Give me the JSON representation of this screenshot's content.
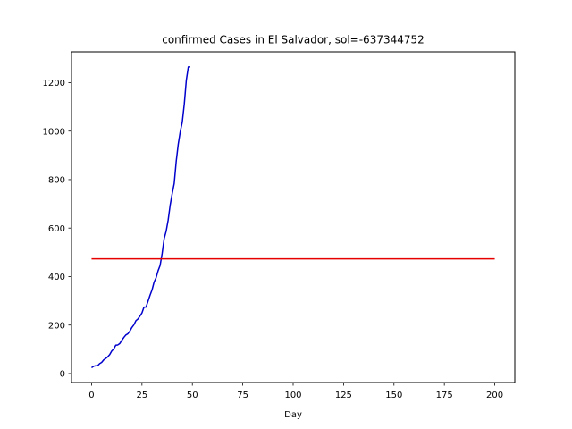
{
  "chart_data": {
    "type": "line",
    "title": "confirmed Cases in El Salvador, sol=-637344752",
    "xlabel": "Day",
    "ylabel": "",
    "xlim": [
      -9.95,
      209.95
    ],
    "ylim": [
      -37,
      1327
    ],
    "xticks": [
      0,
      25,
      50,
      75,
      100,
      125,
      150,
      175,
      200
    ],
    "yticks": [
      0,
      200,
      400,
      600,
      800,
      1000,
      1200
    ],
    "grid": false,
    "series": [
      {
        "color": "#0000cc",
        "x": [
          0,
          1,
          2,
          3,
          4,
          5,
          6,
          7,
          8,
          9,
          10,
          11,
          12,
          13,
          14,
          15,
          16,
          17,
          18,
          19,
          20,
          21,
          22,
          23,
          24,
          25,
          26,
          27,
          28,
          29,
          30,
          31,
          32,
          33,
          34,
          35,
          36,
          37,
          38,
          39,
          40,
          41,
          42,
          43,
          44,
          45,
          46,
          47,
          48,
          49
        ],
        "y": [
          24,
          30,
          32,
          32,
          41,
          46,
          56,
          62,
          69,
          78,
          93,
          101,
          117,
          118,
          124,
          137,
          149,
          159,
          164,
          175,
          190,
          201,
          218,
          225,
          237,
          250,
          274,
          274,
          298,
          323,
          345,
          377,
          395,
          424,
          446,
          495,
          556,
          587,
          633,
          695,
          742,
          784,
          876,
          946,
          998,
          1037,
          1112,
          1210,
          1265,
          1265
        ]
      },
      {
        "color": "#e60000",
        "x": [
          0,
          200
        ],
        "y": [
          473,
          473
        ]
      }
    ]
  }
}
